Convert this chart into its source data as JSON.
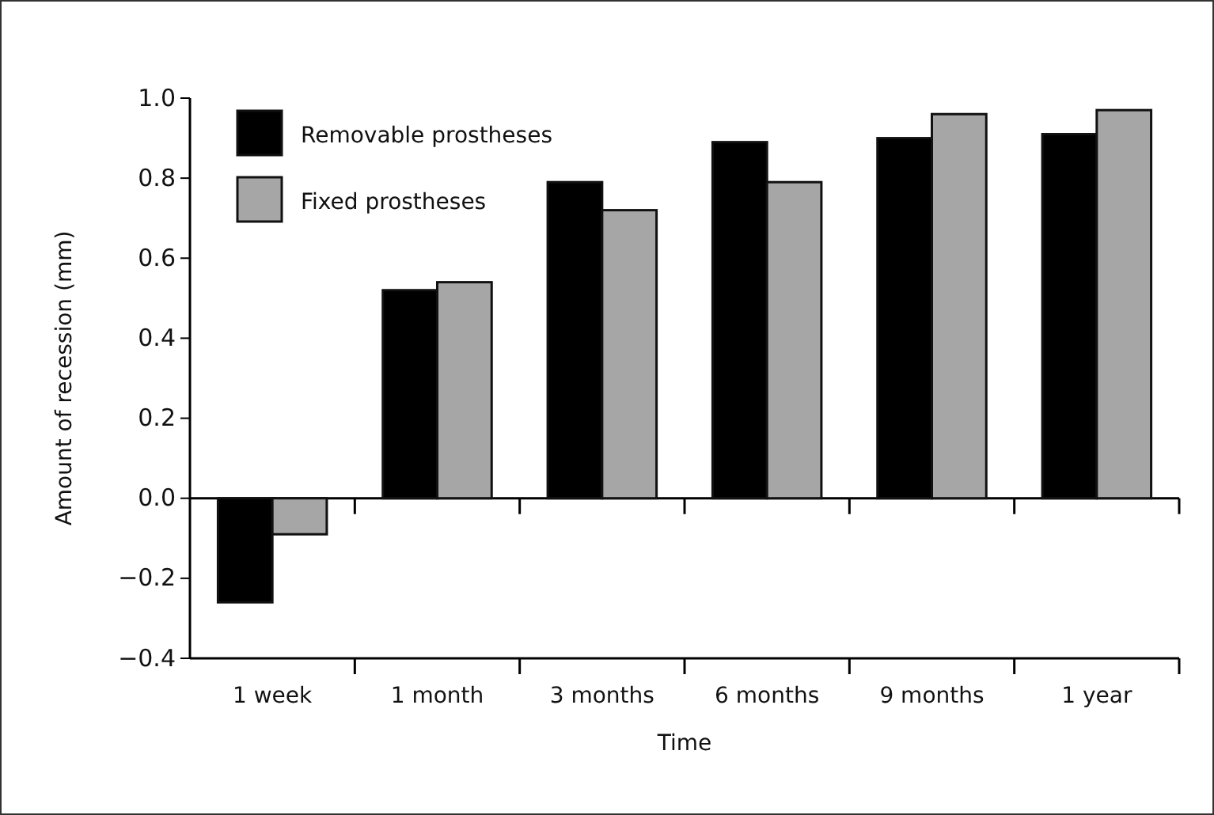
{
  "chart_data": {
    "type": "bar",
    "xlabel": "Time",
    "ylabel": "Amount of recession (mm)",
    "categories": [
      "1 week",
      "1 month",
      "3 months",
      "6 months",
      "9 months",
      "1 year"
    ],
    "series": [
      {
        "name": "Removable prostheses",
        "color": "#000000",
        "values": [
          -0.26,
          0.52,
          0.79,
          0.89,
          0.9,
          0.91
        ]
      },
      {
        "name": "Fixed prostheses",
        "color": "#a6a6a6",
        "values": [
          -0.09,
          0.54,
          0.72,
          0.79,
          0.96,
          0.97
        ]
      }
    ],
    "ylim": [
      -0.4,
      1.0
    ],
    "yticks": [
      {
        "value": -0.4,
        "label": "−0.4"
      },
      {
        "value": -0.2,
        "label": "−0.2"
      },
      {
        "value": 0,
        "label": "0.0"
      },
      {
        "value": 0.2,
        "label": "0.2"
      },
      {
        "value": 0.4,
        "label": "0.4"
      },
      {
        "value": 0.6,
        "label": "0.6"
      },
      {
        "value": 0.8,
        "label": "0.8"
      },
      {
        "value": 1.0,
        "label": "1.0"
      }
    ],
    "legend": "top left"
  }
}
